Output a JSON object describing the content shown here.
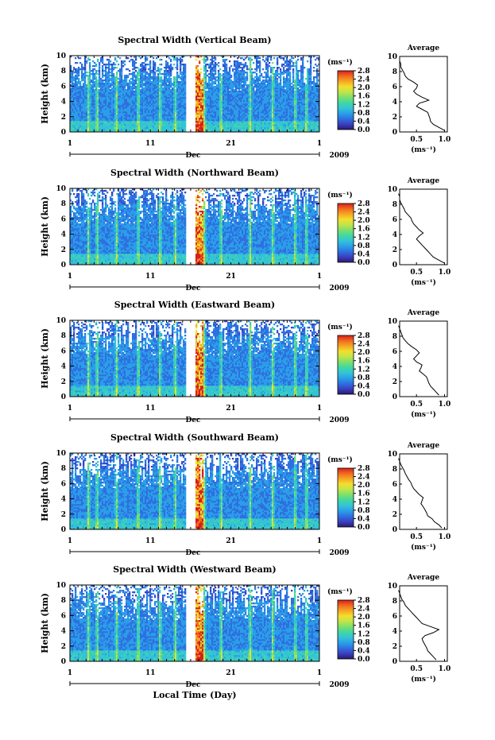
{
  "chart_data": {
    "type": "heatmap",
    "xlabel": "Local Time (Day)",
    "month_label": "Dec",
    "year_label": "2009",
    "x_ticks": [
      "1",
      "11",
      "21",
      "1"
    ],
    "colorbar": {
      "unit_label": "(ms⁻¹)",
      "ticks": [
        "0.0",
        "0.4",
        "0.8",
        "1.2",
        "1.6",
        "2.0",
        "2.4",
        "2.8"
      ],
      "range": [
        0,
        2.8
      ],
      "palette": [
        "#2a1b6e",
        "#3a3fbf",
        "#2f6fe0",
        "#2a9ee8",
        "#34c2d8",
        "#3fd6a6",
        "#7ee06a",
        "#c2e44a",
        "#f3df2e",
        "#f6a623",
        "#f06a1e",
        "#d61f1f"
      ]
    },
    "height_axis": {
      "label": "Height (km)",
      "ticks": [
        "0",
        "2",
        "4",
        "6",
        "8",
        "10"
      ],
      "range": [
        0,
        10
      ]
    },
    "gap_days": [
      15.5,
      16.0
    ],
    "panels": [
      {
        "title": "Spectral Width (Vertical Beam)",
        "avg_title": "Average",
        "avg_xticks": [
          "0.5",
          "1.0"
        ],
        "avg_xlabel": "(ms⁻¹)",
        "average_profile": {
          "height_km": [
            0.2,
            0.6,
            1.0,
            1.4,
            1.8,
            2.2,
            2.6,
            3.0,
            3.4,
            3.8,
            4.2,
            4.6,
            5.0,
            5.4,
            5.8,
            6.2,
            6.6,
            7.0,
            7.4,
            7.8,
            8.2,
            8.6,
            9.0,
            9.4
          ],
          "width_ms": [
            1.0,
            0.9,
            0.8,
            0.75,
            0.74,
            0.72,
            0.7,
            0.6,
            0.5,
            0.55,
            0.72,
            0.6,
            0.5,
            0.45,
            0.5,
            0.52,
            0.45,
            0.35,
            0.3,
            0.28,
            0.25,
            0.22,
            0.22,
            0.2
          ]
        }
      },
      {
        "title": "Spectral Width (Northward Beam)",
        "avg_title": "Average",
        "avg_xticks": [
          "0.5",
          "1.0"
        ],
        "avg_xlabel": "(ms⁻¹)",
        "average_profile": {
          "height_km": [
            0.2,
            0.6,
            1.0,
            1.4,
            1.8,
            2.2,
            2.6,
            3.0,
            3.4,
            3.8,
            4.2,
            4.6,
            5.0,
            5.4,
            5.8,
            6.2,
            6.6,
            7.0,
            7.4,
            7.8,
            8.2,
            8.6,
            9.0,
            9.4
          ],
          "width_ms": [
            1.0,
            0.9,
            0.8,
            0.75,
            0.7,
            0.65,
            0.6,
            0.55,
            0.5,
            0.55,
            0.62,
            0.55,
            0.5,
            0.45,
            0.42,
            0.4,
            0.35,
            0.3,
            0.28,
            0.25,
            0.22,
            0.2,
            0.2,
            0.18
          ]
        }
      },
      {
        "title": "Spectral Width (Eastward Beam)",
        "avg_title": "Average",
        "avg_xticks": [
          "0.5",
          "1.0"
        ],
        "avg_xlabel": "(ms⁻¹)",
        "average_profile": {
          "height_km": [
            0.2,
            0.6,
            1.0,
            1.4,
            1.8,
            2.2,
            2.6,
            3.0,
            3.4,
            3.8,
            4.2,
            4.6,
            5.0,
            5.4,
            5.8,
            6.2,
            6.6,
            7.0,
            7.4,
            7.8,
            8.2,
            8.6,
            9.0,
            9.4
          ],
          "width_ms": [
            0.9,
            0.85,
            0.8,
            0.75,
            0.72,
            0.7,
            0.68,
            0.62,
            0.55,
            0.58,
            0.6,
            0.5,
            0.45,
            0.5,
            0.55,
            0.5,
            0.42,
            0.35,
            0.3,
            0.26,
            0.24,
            0.22,
            0.2,
            0.18
          ]
        }
      },
      {
        "title": "Spectral Width (Southward Beam)",
        "avg_title": "Average",
        "avg_xticks": [
          "0.5",
          "1.0"
        ],
        "avg_xlabel": "(ms⁻¹)",
        "average_profile": {
          "height_km": [
            0.2,
            0.6,
            1.0,
            1.4,
            1.8,
            2.2,
            2.6,
            3.0,
            3.4,
            3.8,
            4.2,
            4.6,
            5.0,
            5.4,
            5.8,
            6.2,
            6.6,
            7.0,
            7.4,
            7.8,
            8.2,
            8.6,
            9.0,
            9.4
          ],
          "width_ms": [
            0.95,
            0.9,
            0.82,
            0.78,
            0.7,
            0.68,
            0.65,
            0.62,
            0.58,
            0.6,
            0.62,
            0.55,
            0.5,
            0.45,
            0.42,
            0.4,
            0.36,
            0.33,
            0.3,
            0.28,
            0.25,
            0.22,
            0.2,
            0.18
          ]
        }
      },
      {
        "title": "Spectral Width (Westward Beam)",
        "avg_title": "Average",
        "avg_xticks": [
          "0.5",
          "1.0"
        ],
        "avg_xlabel": "(ms⁻¹)",
        "average_profile": {
          "height_km": [
            0.2,
            0.6,
            1.0,
            1.4,
            1.8,
            2.2,
            2.6,
            3.0,
            3.4,
            3.8,
            4.2,
            4.6,
            5.0,
            5.4,
            5.8,
            6.2,
            6.6,
            7.0,
            7.4,
            7.8,
            8.2,
            8.6,
            9.0,
            9.4
          ],
          "width_ms": [
            0.85,
            0.8,
            0.75,
            0.7,
            0.68,
            0.65,
            0.62,
            0.6,
            0.65,
            0.8,
            0.9,
            0.75,
            0.6,
            0.55,
            0.5,
            0.45,
            0.4,
            0.35,
            0.3,
            0.28,
            0.24,
            0.22,
            0.2,
            0.18
          ]
        }
      }
    ]
  }
}
